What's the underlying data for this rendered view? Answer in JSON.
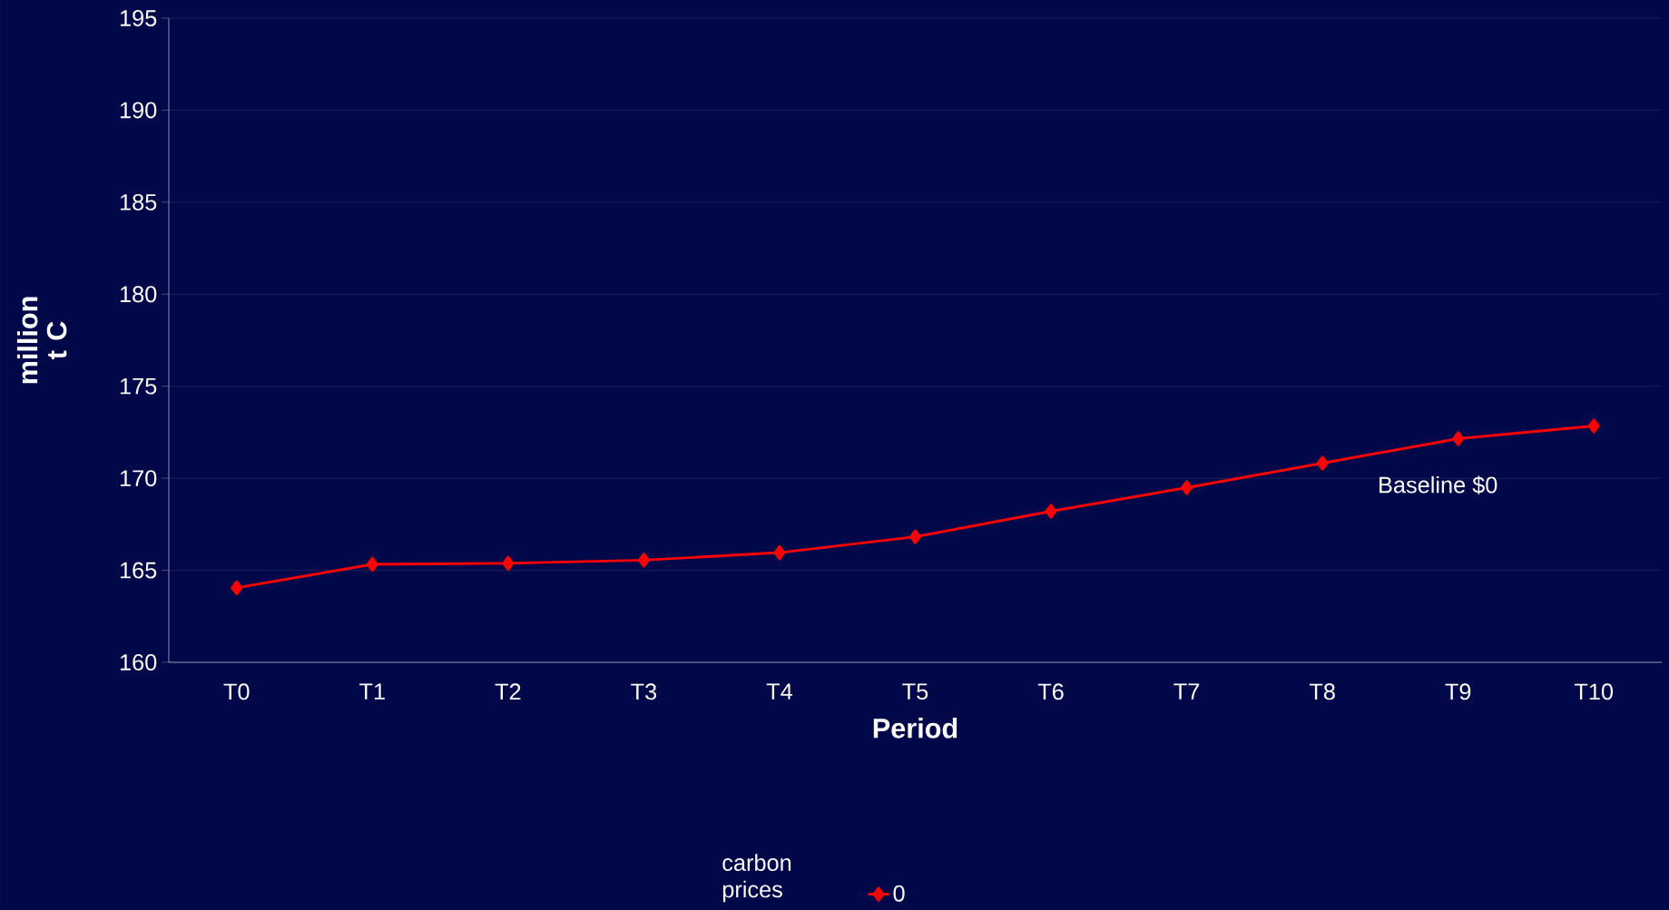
{
  "chart_data": {
    "type": "line",
    "xlabel": "Period",
    "ylabel": "million t C",
    "legend_title": "carbon prices",
    "categories": [
      "T0",
      "T1",
      "T2",
      "T3",
      "T4",
      "T5",
      "T6",
      "T7",
      "T8",
      "T9",
      "T10"
    ],
    "series": [
      {
        "name": "0",
        "color": "#ff0000",
        "values": [
          164.05,
          165.32,
          165.38,
          165.55,
          165.96,
          166.82,
          168.21,
          169.49,
          170.82,
          172.15,
          172.84
        ]
      }
    ],
    "ylim": [
      160,
      195
    ],
    "yticks": [
      160,
      165,
      170,
      175,
      180,
      185,
      190,
      195
    ],
    "grid": "y",
    "legend": "bottom",
    "marker": "diamond",
    "line_style": "solid",
    "annotations": [
      "Baseline $0"
    ]
  }
}
